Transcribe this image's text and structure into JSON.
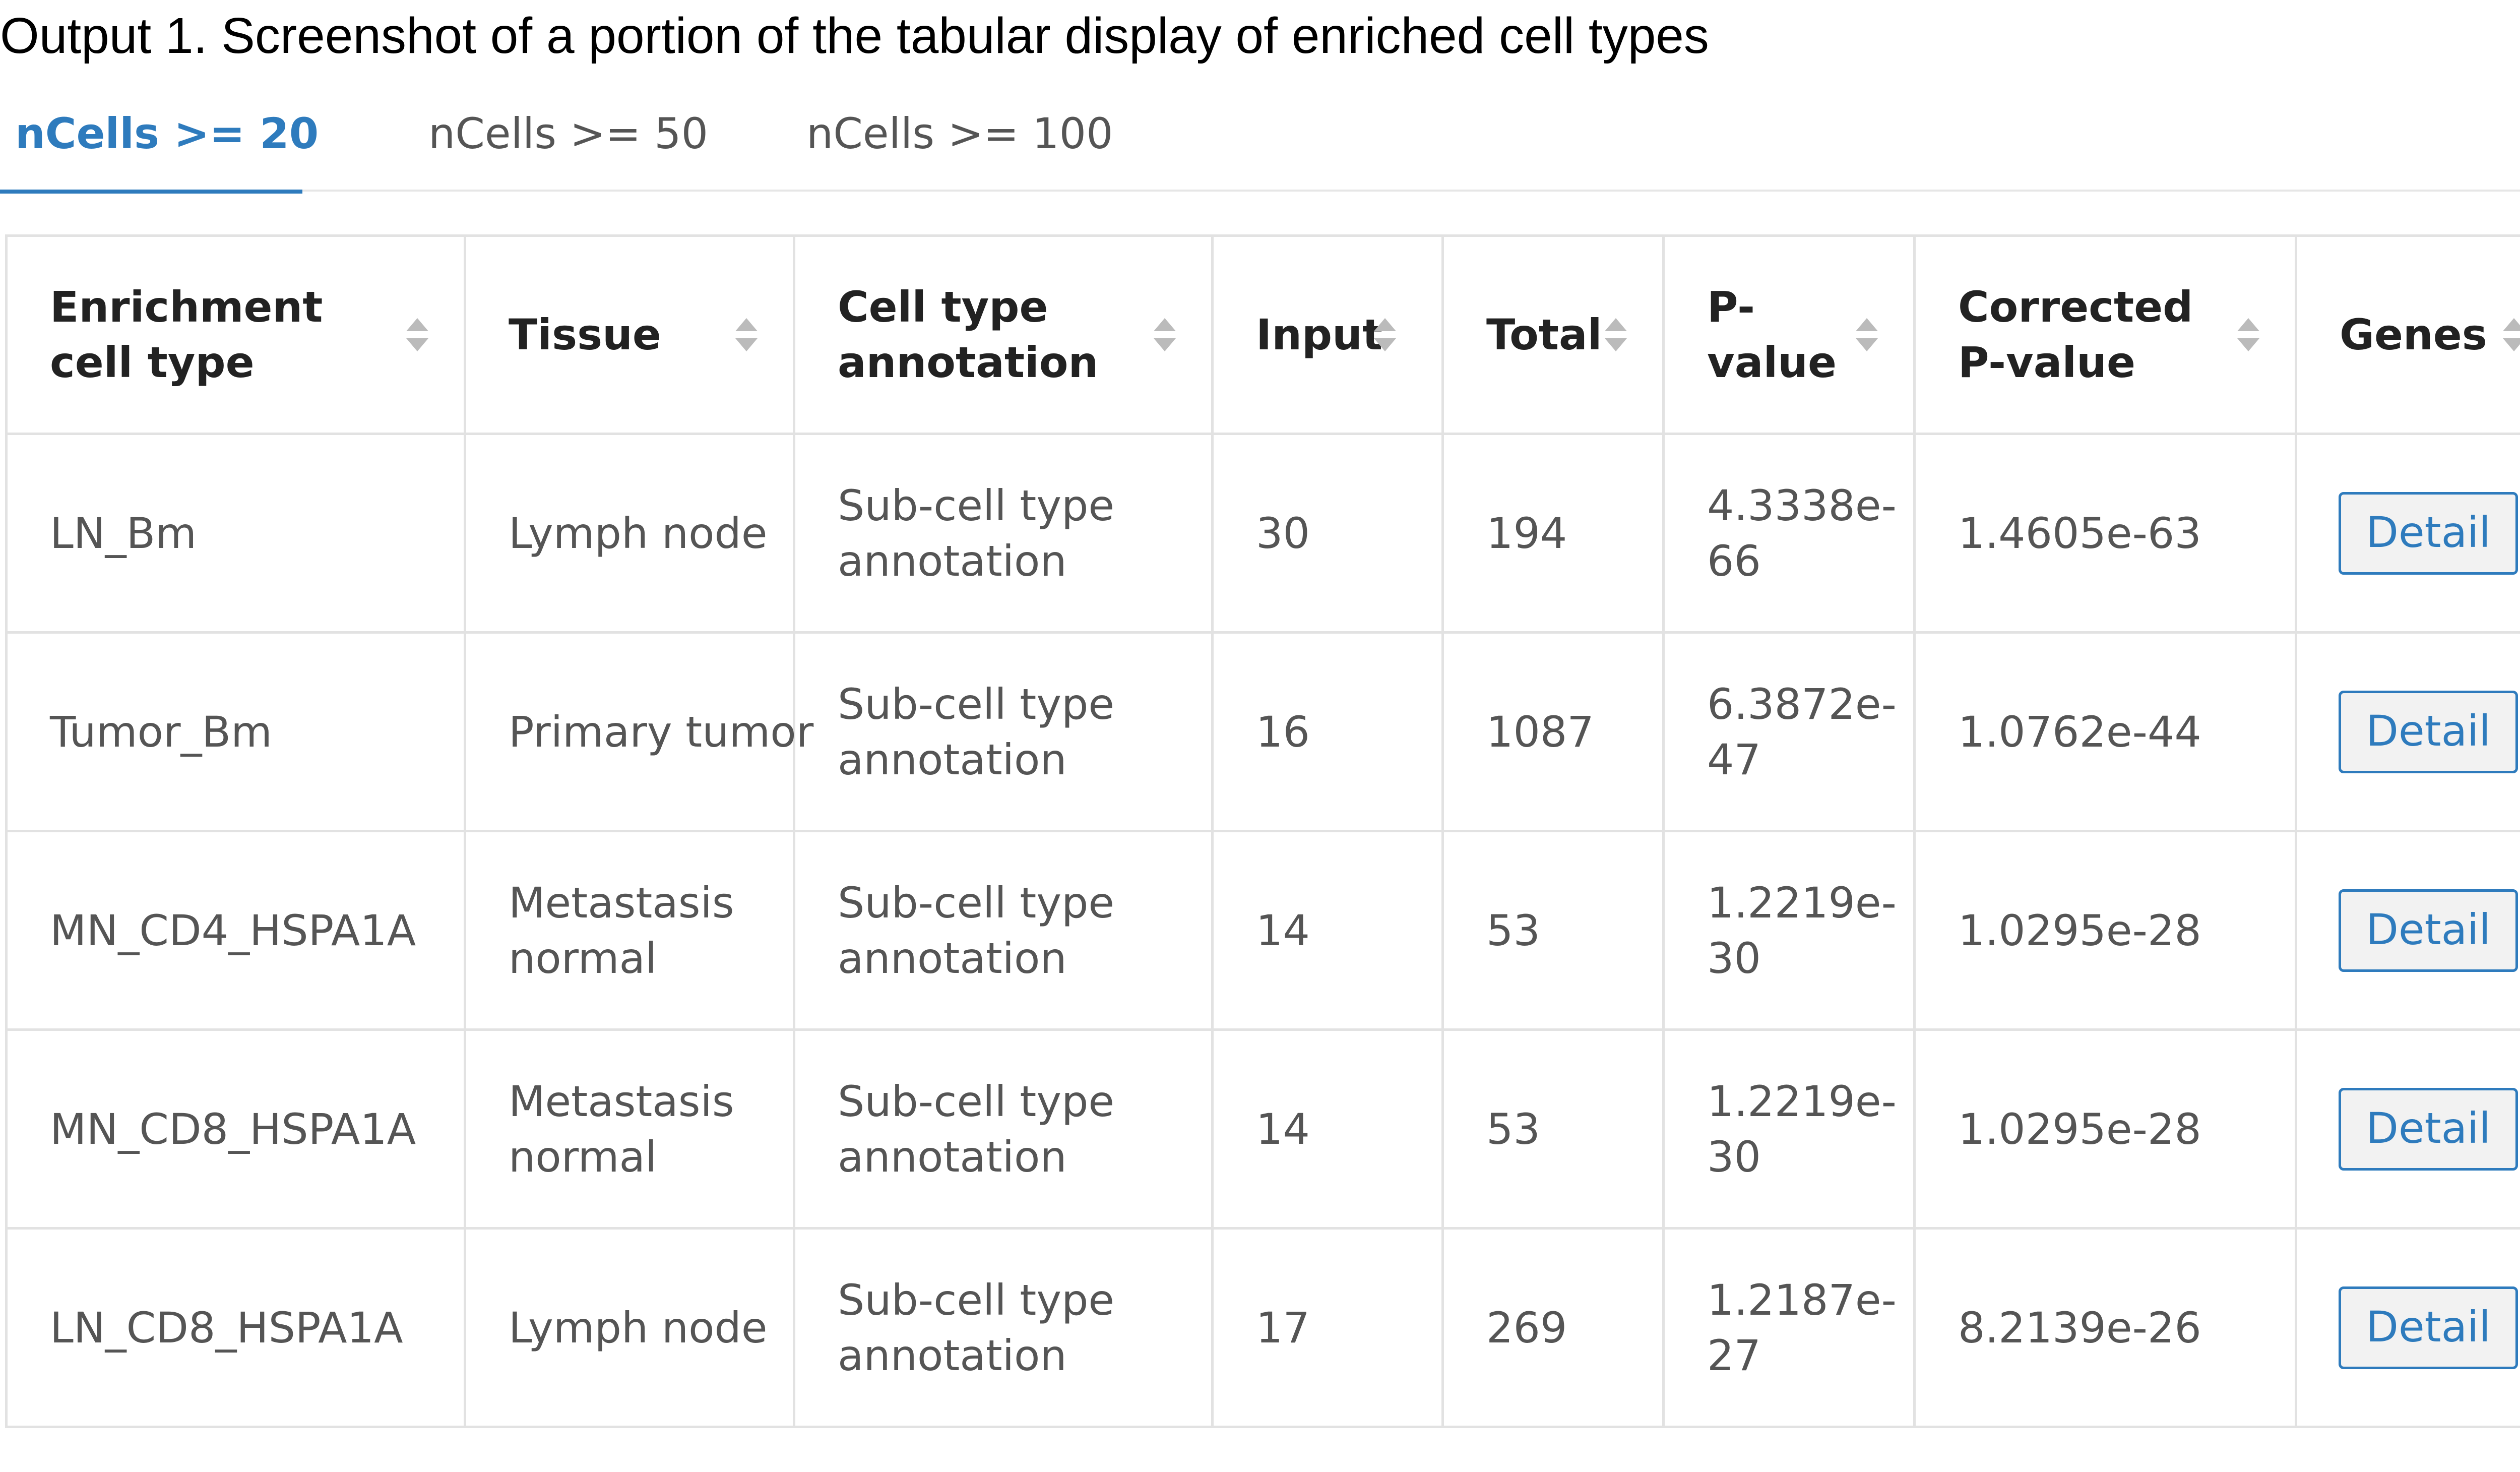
{
  "caption": "Output 1. Screenshot of a portion of the tabular display of enriched cell types",
  "tabs": [
    {
      "label": "nCells >= 20",
      "active": true
    },
    {
      "label": "nCells >= 50",
      "active": false
    },
    {
      "label": "nCells >= 100",
      "active": false
    }
  ],
  "table": {
    "headers": [
      "Enrichment cell type",
      "Tissue",
      "Cell type annotation",
      "Input",
      "Total",
      "P-value",
      "Corrected P-value",
      "Genes"
    ],
    "detail_label": "Detail",
    "rows": [
      {
        "cell_type": "LN_Bm",
        "tissue": "Lymph node",
        "annotation": "Sub-cell type annotation",
        "input": "30",
        "total": "194",
        "p_value": "4.3338e-66",
        "corrected_p_value": "1.4605e-63"
      },
      {
        "cell_type": "Tumor_Bm",
        "tissue": "Primary tumor",
        "annotation": "Sub-cell type annotation",
        "input": "16",
        "total": "1087",
        "p_value": "6.3872e-47",
        "corrected_p_value": "1.0762e-44"
      },
      {
        "cell_type": "MN_CD4_HSPA1A",
        "tissue": "Metastasis normal",
        "annotation": "Sub-cell type annotation",
        "input": "14",
        "total": "53",
        "p_value": "1.2219e-30",
        "corrected_p_value": "1.0295e-28"
      },
      {
        "cell_type": "MN_CD8_HSPA1A",
        "tissue": "Metastasis normal",
        "annotation": "Sub-cell type annotation",
        "input": "14",
        "total": "53",
        "p_value": "1.2219e-30",
        "corrected_p_value": "1.0295e-28"
      },
      {
        "cell_type": "LN_CD8_HSPA1A",
        "tissue": "Lymph node",
        "annotation": "Sub-cell type annotation",
        "input": "17",
        "total": "269",
        "p_value": "1.2187e-27",
        "corrected_p_value": "8.2139e-26"
      }
    ]
  },
  "colors": {
    "accent": "#2e7bbd",
    "border": "#e2e2e2",
    "text": "#555555",
    "sort_icon": "#bbbbbb",
    "button_bg": "#f2f2f2"
  },
  "icons": {
    "sort": "sort-icon"
  }
}
